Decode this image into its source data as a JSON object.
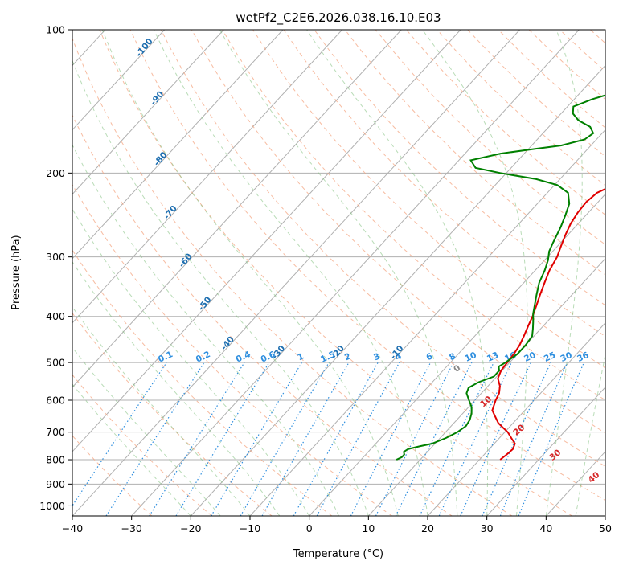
{
  "chart_data": {
    "type": "line",
    "chart_kind": "skew-T log-P",
    "title": "wetPf2_C2E6.2026.038.16.10.E03",
    "xlabel": "Temperature (°C)",
    "ylabel": "Pressure (hPa)",
    "xlim": [
      -40,
      50
    ],
    "ylim": [
      1050,
      100
    ],
    "x_ticks": [
      -40,
      -30,
      -20,
      -10,
      0,
      10,
      20,
      30,
      40,
      50
    ],
    "y_ticks": [
      100,
      200,
      300,
      400,
      500,
      600,
      700,
      800,
      900,
      1000
    ],
    "grid": true,
    "dry_adiabat_labels": [
      "-100",
      "-90",
      "-80",
      "-70",
      "-60",
      "-50",
      "-40",
      "-30",
      "-20",
      "-10"
    ],
    "moist_adiabat_labels": [
      "0",
      "10",
      "20",
      "30",
      "40"
    ],
    "mixing_ratio_labels": [
      "0.1",
      "0.2",
      "0.4",
      "0.6",
      "1",
      "1.5",
      "2",
      "3",
      "4",
      "6",
      "8",
      "10",
      "13",
      "16",
      "20",
      "25",
      "30",
      "36"
    ],
    "series": [
      {
        "name": "Temperature",
        "color": "#e00000",
        "points": [
          [
            23.5,
            800
          ],
          [
            23.8,
            780
          ],
          [
            24.0,
            760
          ],
          [
            23.5,
            740
          ],
          [
            22.0,
            720
          ],
          [
            20.5,
            700
          ],
          [
            19.0,
            685
          ],
          [
            17.5,
            670
          ],
          [
            16.0,
            650
          ],
          [
            14.5,
            630
          ],
          [
            13.5,
            600
          ],
          [
            13.0,
            580
          ],
          [
            12.0,
            560
          ],
          [
            10.5,
            540
          ],
          [
            9.8,
            520
          ],
          [
            9.6,
            500
          ],
          [
            9.4,
            480
          ],
          [
            9.0,
            460
          ],
          [
            8.3,
            440
          ],
          [
            7.5,
            420
          ],
          [
            6.7,
            400
          ],
          [
            5.7,
            380
          ],
          [
            4.6,
            360
          ],
          [
            3.5,
            340
          ],
          [
            2.4,
            320
          ],
          [
            1.6,
            300
          ],
          [
            0.6,
            285
          ],
          [
            -0.4,
            270
          ],
          [
            -1.3,
            255
          ],
          [
            -1.8,
            242
          ],
          [
            -2.0,
            230
          ],
          [
            -1.6,
            220
          ],
          [
            0.0,
            212
          ],
          [
            3.0,
            205
          ],
          [
            5.8,
            198
          ],
          [
            7.6,
            190
          ],
          [
            8.6,
            180
          ],
          [
            8.4,
            175
          ],
          [
            7.8,
            170
          ],
          [
            7.6,
            160
          ],
          [
            8.2,
            150
          ],
          [
            9.2,
            140
          ],
          [
            9.5,
            130
          ],
          [
            9.6,
            120
          ],
          [
            10.3,
            110
          ],
          [
            11.3,
            100
          ]
        ]
      },
      {
        "name": "Dewpoint",
        "color": "#008000",
        "points": [
          [
            6.0,
            800
          ],
          [
            6.5,
            790
          ],
          [
            6.5,
            780
          ],
          [
            6.0,
            770
          ],
          [
            6.3,
            760
          ],
          [
            7.8,
            750
          ],
          [
            9.5,
            740
          ],
          [
            11.0,
            720
          ],
          [
            12.0,
            700
          ],
          [
            12.5,
            680
          ],
          [
            12.2,
            660
          ],
          [
            11.5,
            640
          ],
          [
            10.5,
            620
          ],
          [
            9.0,
            600
          ],
          [
            7.5,
            580
          ],
          [
            7.0,
            565
          ],
          [
            7.8,
            550
          ],
          [
            9.5,
            535
          ],
          [
            9.5,
            520
          ],
          [
            8.8,
            510
          ],
          [
            9.3,
            500
          ],
          [
            10.0,
            480
          ],
          [
            10.0,
            460
          ],
          [
            9.7,
            440
          ],
          [
            8.7,
            425
          ],
          [
            7.6,
            410
          ],
          [
            6.4,
            395
          ],
          [
            5.4,
            380
          ],
          [
            4.0,
            360
          ],
          [
            2.6,
            340
          ],
          [
            1.6,
            320
          ],
          [
            0.6,
            305
          ],
          [
            -0.6,
            292
          ],
          [
            -1.3,
            280
          ],
          [
            -2.4,
            260
          ],
          [
            -3.5,
            245
          ],
          [
            -4.6,
            232
          ],
          [
            -6.5,
            220
          ],
          [
            -9.5,
            212
          ],
          [
            -14.0,
            206
          ],
          [
            -21.0,
            200
          ],
          [
            -26.0,
            195
          ],
          [
            -28.0,
            188
          ],
          [
            -24.0,
            182
          ],
          [
            -19.0,
            178
          ],
          [
            -15.0,
            175
          ],
          [
            -12.0,
            170
          ],
          [
            -11.5,
            165
          ],
          [
            -13.0,
            160
          ],
          [
            -16.0,
            155
          ],
          [
            -18.0,
            150
          ],
          [
            -19.0,
            145
          ],
          [
            -17.0,
            140
          ],
          [
            -14.0,
            135
          ],
          [
            -11.0,
            130
          ],
          [
            -9.0,
            125
          ],
          [
            -7.0,
            118
          ],
          [
            -4.5,
            110
          ],
          [
            -1.5,
            100
          ]
        ]
      }
    ]
  }
}
